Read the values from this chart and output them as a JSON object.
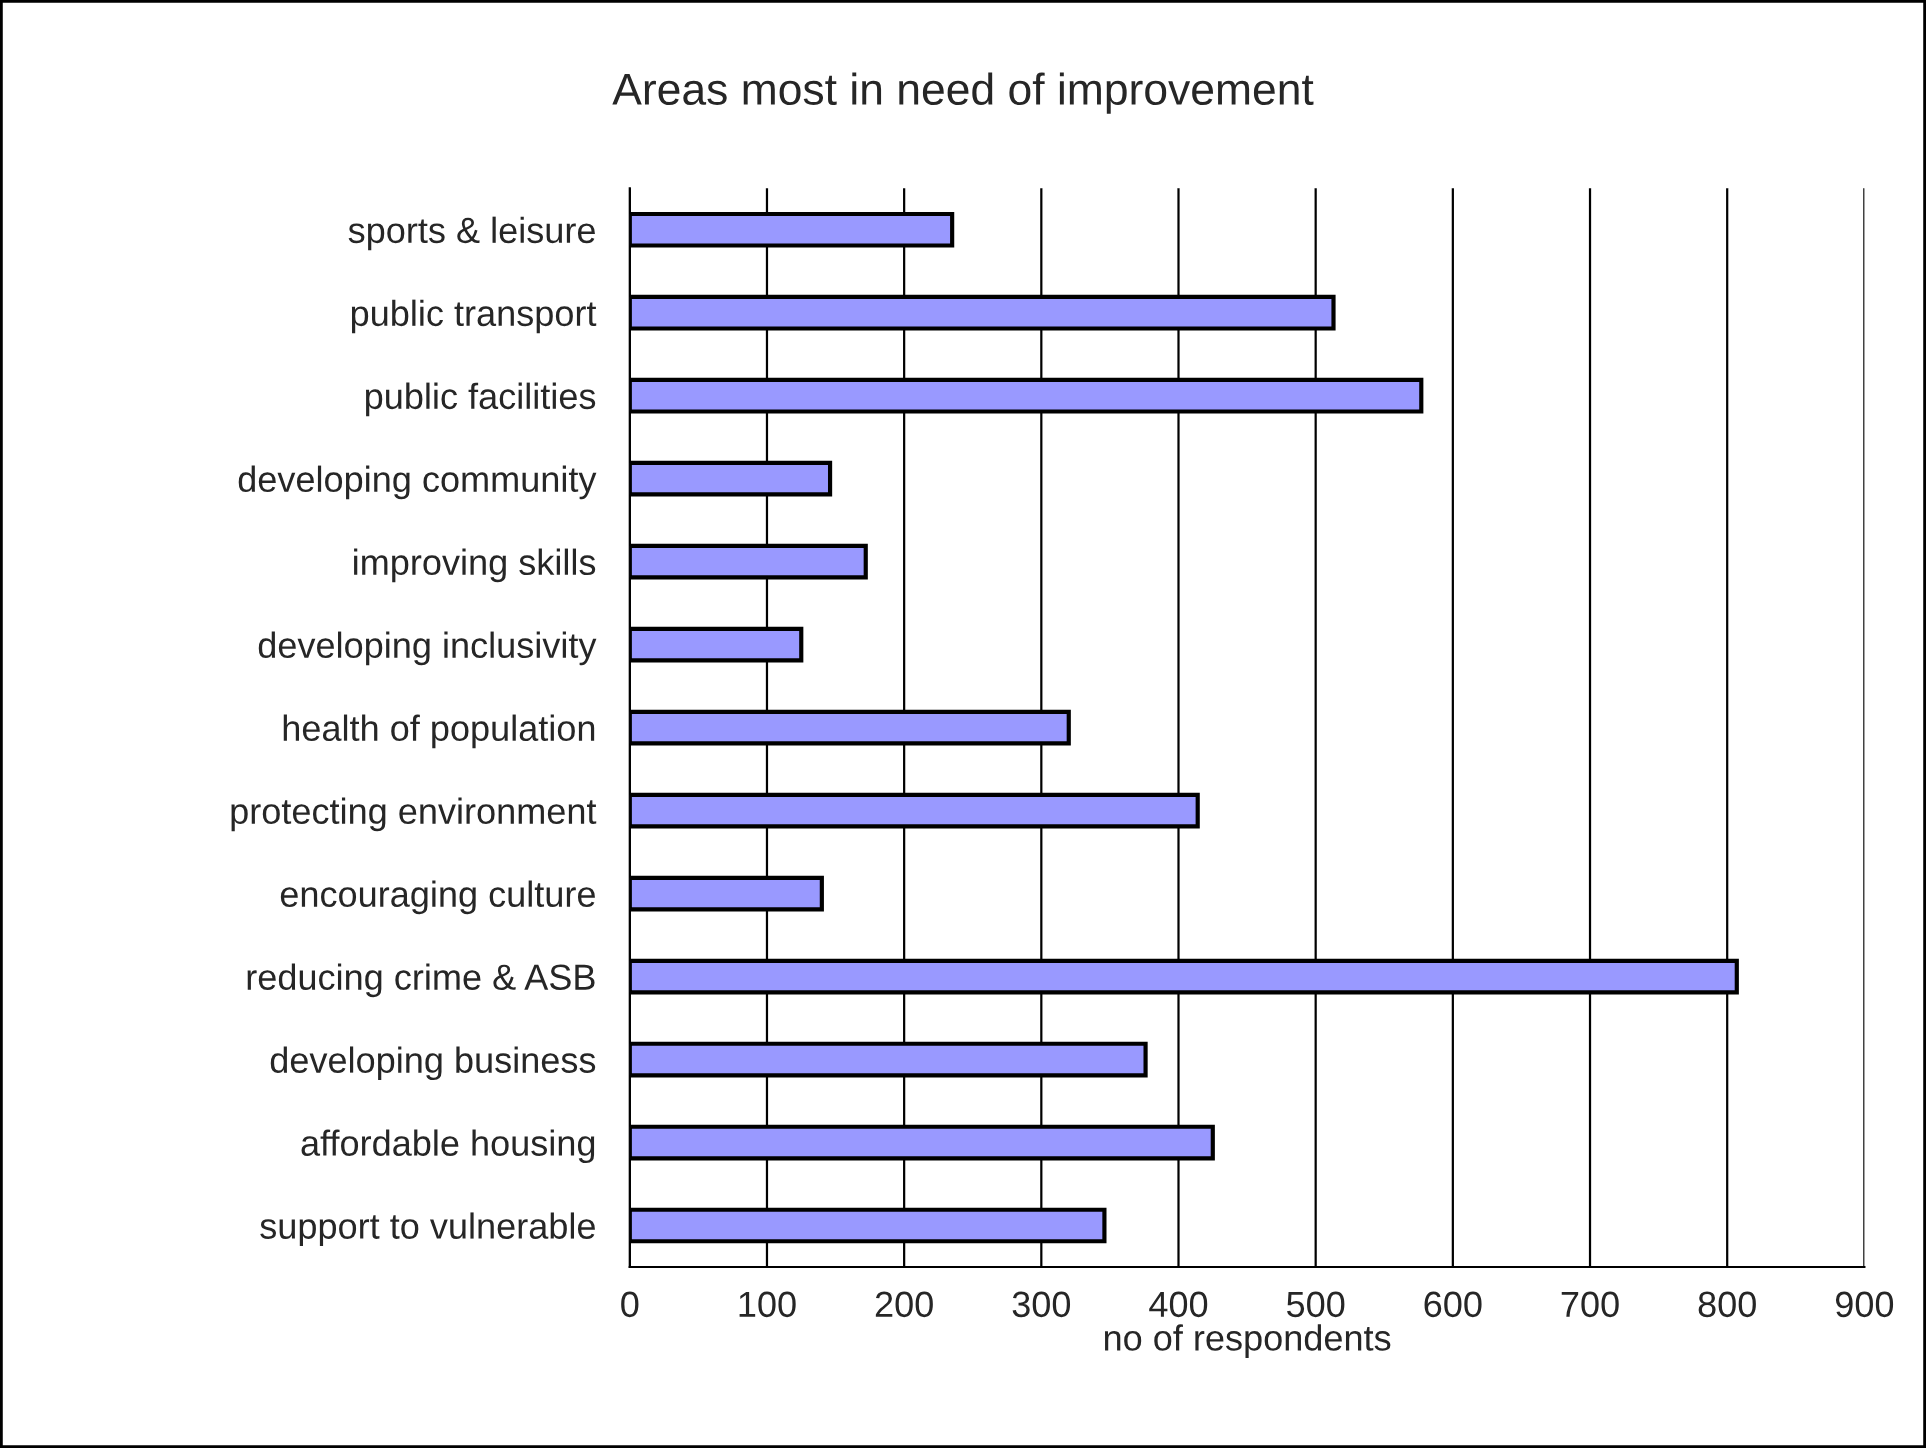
{
  "chart_data": {
    "type": "bar",
    "orientation": "horizontal",
    "title": "Areas most in need of improvement",
    "xlabel": "no of respondents",
    "categories": [
      "sports & leisure",
      "public transport",
      "public facilities",
      "developing community",
      "improving skills",
      "developing inclusivity",
      "health of population",
      "protecting environment",
      "encouraging culture",
      "reducing crime & ASB",
      "developing business",
      "affordable housing",
      "support to vulnerable"
    ],
    "values": [
      235,
      513,
      577,
      146,
      172,
      125,
      320,
      414,
      140,
      807,
      376,
      425,
      346
    ],
    "color": "#9999ff",
    "xlim": [
      0,
      900
    ],
    "xticks": [
      0,
      100,
      200,
      300,
      400,
      500,
      600,
      700,
      800,
      900
    ],
    "grid": "x",
    "legend": false
  }
}
